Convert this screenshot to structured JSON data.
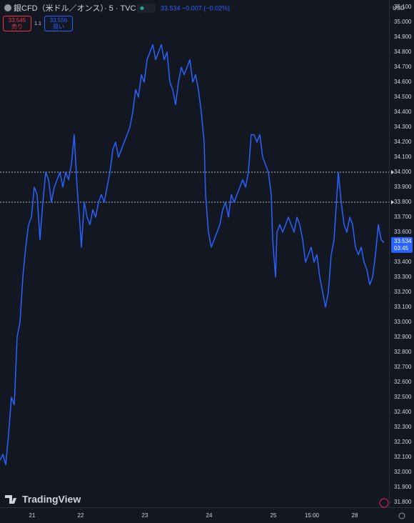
{
  "header": {
    "symbol": "銀CFD（米ドル／オンス）· 5 · TVC",
    "quote": "33.534 −0.007 (−0.02%)",
    "currency": "USD",
    "sell_price": "33.545",
    "sell_label": "売り",
    "spread": "1.1",
    "buy_price": "33.556",
    "buy_label": "買い",
    "logo": "TradingView"
  },
  "chart_data": {
    "type": "line",
    "color": "#2962ff",
    "x": [
      0,
      4,
      8,
      12,
      16,
      20,
      24,
      28,
      32,
      36,
      40,
      44,
      48,
      52,
      56,
      60,
      64,
      68,
      72,
      76,
      80,
      84,
      88,
      92,
      96,
      100,
      104,
      108,
      112,
      114,
      118,
      122,
      126,
      130,
      134,
      138,
      142,
      146,
      150,
      154,
      158,
      162,
      166,
      170,
      174,
      178,
      182,
      186,
      190,
      194,
      198,
      202,
      206,
      210,
      214,
      218,
      222,
      226,
      230,
      234,
      238,
      242,
      246,
      250,
      254,
      258,
      262,
      266,
      270,
      274,
      278,
      282,
      286,
      288,
      292,
      296,
      300,
      304,
      308,
      312,
      316,
      320,
      324,
      328,
      332,
      336,
      340,
      344,
      348,
      352,
      356,
      360,
      364,
      368,
      372,
      376,
      380,
      382,
      386,
      388,
      392,
      396,
      400,
      404,
      408,
      412,
      416,
      420,
      424,
      428,
      432,
      436,
      440,
      444,
      448,
      452,
      456,
      460,
      464,
      468,
      472,
      474,
      478,
      482,
      486,
      490,
      494,
      498,
      502,
      506,
      510,
      514,
      518,
      522,
      526,
      530,
      534,
      538
    ],
    "values": [
      32.08,
      32.12,
      32.05,
      32.25,
      32.5,
      32.45,
      32.9,
      33.0,
      33.3,
      33.5,
      33.65,
      33.7,
      33.9,
      33.85,
      33.55,
      33.8,
      34.0,
      33.95,
      33.8,
      33.9,
      33.95,
      34.0,
      33.9,
      34.0,
      33.95,
      34.05,
      34.25,
      33.9,
      33.65,
      33.5,
      33.8,
      33.7,
      33.65,
      33.75,
      33.7,
      33.8,
      33.85,
      33.8,
      33.9,
      34.0,
      34.15,
      34.2,
      34.1,
      34.15,
      34.2,
      34.25,
      34.3,
      34.4,
      34.55,
      34.5,
      34.65,
      34.6,
      34.75,
      34.8,
      34.85,
      34.75,
      34.8,
      34.85,
      34.75,
      34.8,
      34.6,
      34.55,
      34.45,
      34.6,
      34.7,
      34.65,
      34.7,
      34.75,
      34.6,
      34.65,
      34.55,
      34.4,
      34.2,
      33.85,
      33.6,
      33.5,
      33.55,
      33.6,
      33.65,
      33.75,
      33.8,
      33.7,
      33.85,
      33.8,
      33.85,
      33.9,
      33.95,
      33.9,
      34.0,
      34.25,
      34.25,
      34.2,
      34.25,
      34.1,
      34.05,
      34.0,
      33.85,
      33.55,
      33.3,
      33.6,
      33.65,
      33.6,
      33.65,
      33.7,
      33.65,
      33.6,
      33.7,
      33.65,
      33.55,
      33.4,
      33.45,
      33.5,
      33.4,
      33.45,
      33.3,
      33.2,
      33.1,
      33.2,
      33.45,
      33.55,
      33.85,
      34.0,
      33.8,
      33.65,
      33.6,
      33.7,
      33.65,
      33.5,
      33.45,
      33.5,
      33.4,
      33.35,
      33.25,
      33.3,
      33.45,
      33.65,
      33.55,
      33.53
    ],
    "xlim": [
      0,
      545
    ],
    "xticks": [
      {
        "value": 45,
        "label": "21"
      },
      {
        "value": 113,
        "label": "22"
      },
      {
        "value": 203,
        "label": "23"
      },
      {
        "value": 293,
        "label": "24"
      },
      {
        "value": 383,
        "label": "25"
      },
      {
        "value": 437,
        "label": "15:00"
      },
      {
        "value": 497,
        "label": "28"
      }
    ],
    "ylim": [
      31.8,
      35.1
    ],
    "yticks": [
      {
        "value": 31.8,
        "label": "31.800"
      },
      {
        "value": 31.9,
        "label": "31.900"
      },
      {
        "value": 32.0,
        "label": "32.000"
      },
      {
        "value": 32.1,
        "label": "32.100"
      },
      {
        "value": 32.2,
        "label": "32.200"
      },
      {
        "value": 32.3,
        "label": "32.300"
      },
      {
        "value": 32.4,
        "label": "32.400"
      },
      {
        "value": 32.5,
        "label": "32.500"
      },
      {
        "value": 32.6,
        "label": "32.600"
      },
      {
        "value": 32.7,
        "label": "32.700"
      },
      {
        "value": 32.8,
        "label": "32.800"
      },
      {
        "value": 32.9,
        "label": "32.900"
      },
      {
        "value": 33.0,
        "label": "33.000"
      },
      {
        "value": 33.1,
        "label": "33.100"
      },
      {
        "value": 33.2,
        "label": "33.200"
      },
      {
        "value": 33.3,
        "label": "33.300"
      },
      {
        "value": 33.4,
        "label": "33.400"
      },
      {
        "value": 33.5,
        "label": "33.500"
      },
      {
        "value": 33.6,
        "label": "33.600"
      },
      {
        "value": 33.7,
        "label": "33.700"
      },
      {
        "value": 33.8,
        "label": "33.800"
      },
      {
        "value": 33.9,
        "label": "33.900"
      },
      {
        "value": 34.0,
        "label": "34.000"
      },
      {
        "value": 34.1,
        "label": "34.100"
      },
      {
        "value": 34.2,
        "label": "34.200"
      },
      {
        "value": 34.3,
        "label": "34.300"
      },
      {
        "value": 34.4,
        "label": "34.400"
      },
      {
        "value": 34.5,
        "label": "34.500"
      },
      {
        "value": 34.6,
        "label": "34.600"
      },
      {
        "value": 34.7,
        "label": "34.700"
      },
      {
        "value": 34.8,
        "label": "34.800"
      },
      {
        "value": 34.9,
        "label": "34.900"
      },
      {
        "value": 35.0,
        "label": "35.000"
      },
      {
        "value": 35.1,
        "label": "35.100"
      }
    ],
    "price_lines": [
      34.0,
      33.8
    ],
    "last_price": {
      "value": 33.534,
      "label": "33.534"
    },
    "countdown": "03:45"
  }
}
